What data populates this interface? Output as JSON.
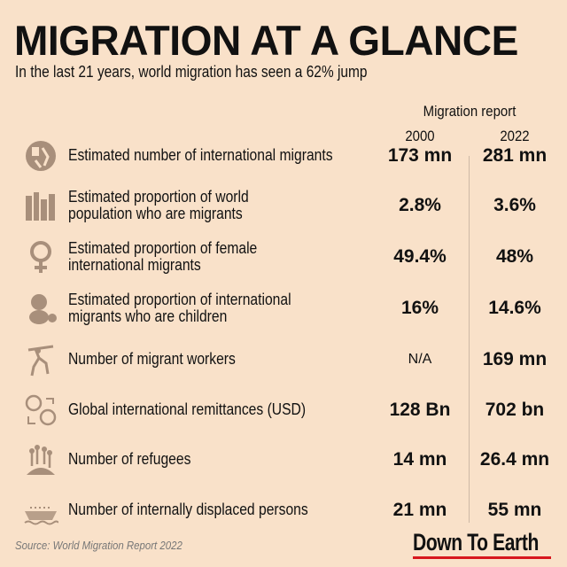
{
  "title": "MIGRATION AT A GLANCE",
  "subtitle": "In the last 21 years, world migration has seen a 62% jump",
  "table": {
    "group_header": "Migration report",
    "columns": [
      "2000",
      "2022"
    ],
    "rows": [
      {
        "icon": "migrants-icon",
        "label": [
          "Estimated number of international migrants",
          ""
        ],
        "v2000": "173 mn",
        "v2022": "281 mn"
      },
      {
        "icon": "population-icon",
        "label": [
          "Estimated proportion of world",
          "population who are migrants"
        ],
        "v2000": "2.8%",
        "v2022": "3.6%"
      },
      {
        "icon": "female-symbol-icon",
        "label": [
          "Estimated proportion of female",
          "international migrants"
        ],
        "v2000": "49.4%",
        "v2022": "48%"
      },
      {
        "icon": "child-icon",
        "label": [
          "Estimated proportion of international",
          "migrants who are children"
        ],
        "v2000": "16%",
        "v2022": "14.6%"
      },
      {
        "icon": "worker-icon",
        "label": [
          "Number of migrant workers",
          ""
        ],
        "v2000": "N/A",
        "v2022": "169 mn"
      },
      {
        "icon": "remittance-icon",
        "label": [
          "Global international remittances (USD)",
          ""
        ],
        "v2000": "128 Bn",
        "v2022": "702 bn"
      },
      {
        "icon": "refugees-icon",
        "label": [
          "Number of refugees",
          ""
        ],
        "v2000": "14 mn",
        "v2022": "26.4 mn"
      },
      {
        "icon": "boat-icon",
        "label": [
          "Number of internally displaced persons",
          ""
        ],
        "v2000": "21 mn",
        "v2022": "55 mn"
      }
    ]
  },
  "source": "Source: World Migration Report 2022",
  "logo": "Down To Earth",
  "colors": {
    "background": "#f9e1c9",
    "icon": "#a88f7b",
    "logo_underline": "#d8171e"
  }
}
